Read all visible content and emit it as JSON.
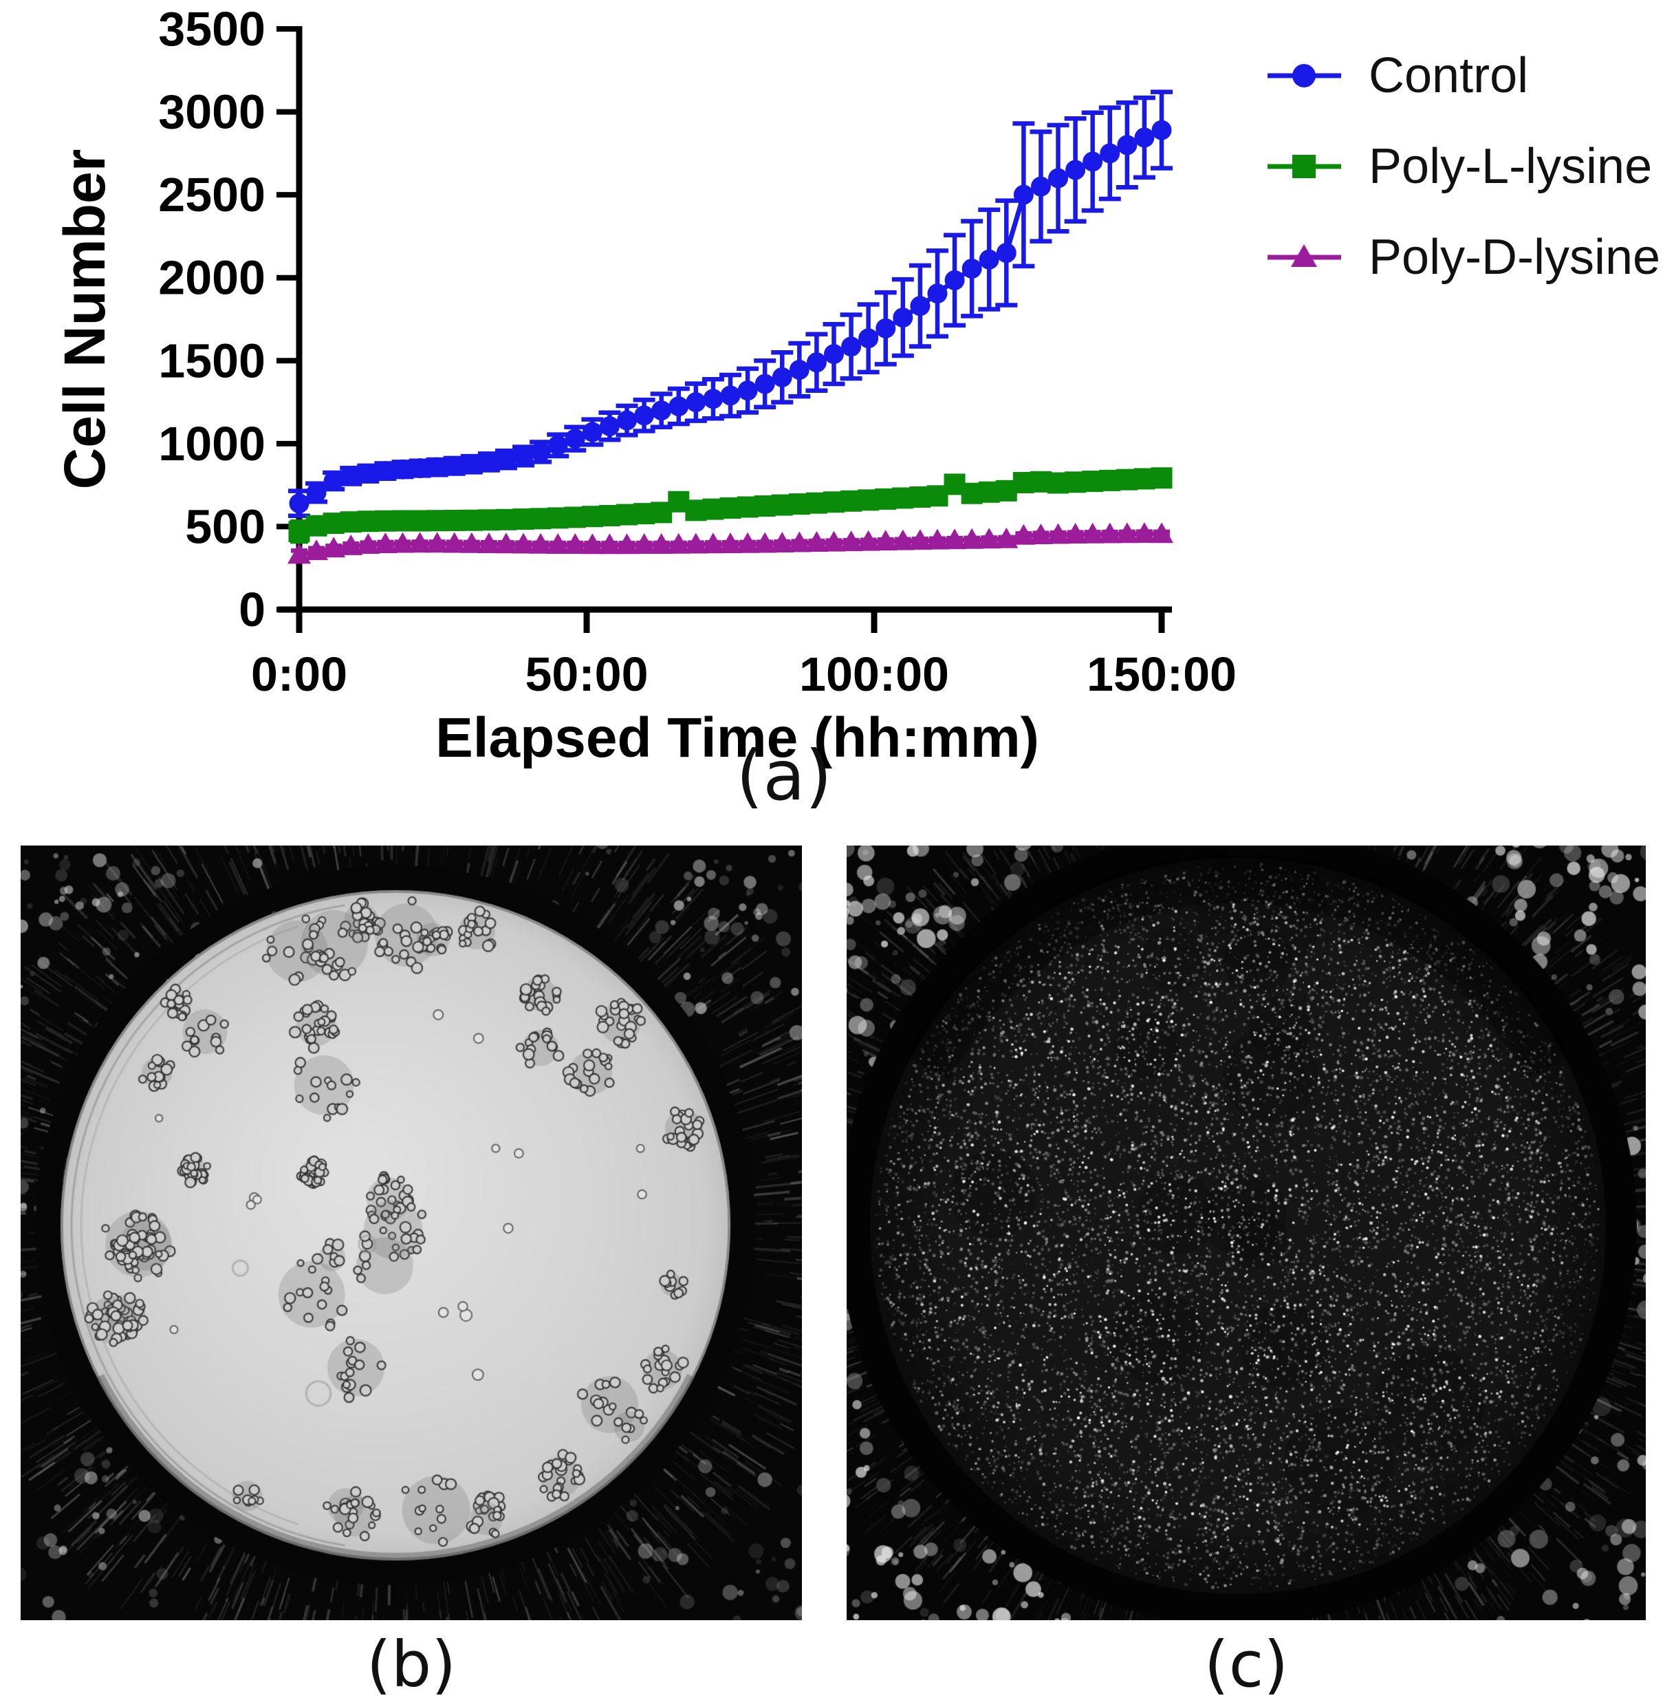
{
  "page": {
    "background": "#ffffff"
  },
  "captions": {
    "a": "(a)",
    "b": "(b)",
    "c": "(c)"
  },
  "chart_data": {
    "type": "line",
    "title": "",
    "xlabel": "Elapsed Time (hh:mm)",
    "ylabel": "Cell Number",
    "xlim_hours": [
      0,
      150
    ],
    "ylim": [
      0,
      3500
    ],
    "y_ticks": [
      0,
      500,
      1000,
      1500,
      2000,
      2500,
      3000,
      3500
    ],
    "x_ticks": [
      {
        "hours": 0,
        "label": "0:00"
      },
      {
        "hours": 50,
        "label": "50:00"
      },
      {
        "hours": 100,
        "label": "100:00"
      },
      {
        "hours": 150,
        "label": "150:00"
      }
    ],
    "grid": false,
    "legend_position": "top-right",
    "sample_interval_hours": 3,
    "x_hours": [
      0,
      3,
      6,
      9,
      12,
      15,
      18,
      21,
      24,
      27,
      30,
      33,
      36,
      39,
      42,
      45,
      48,
      51,
      54,
      57,
      60,
      63,
      66,
      69,
      72,
      75,
      78,
      81,
      84,
      87,
      90,
      93,
      96,
      99,
      102,
      105,
      108,
      111,
      114,
      117,
      120,
      123,
      126,
      129,
      132,
      135,
      138,
      141,
      144,
      147,
      150
    ],
    "series": [
      {
        "name": "Control",
        "color": "#1a1ae8",
        "marker": "circle",
        "values": [
          640,
          705,
          775,
          805,
          820,
          835,
          845,
          852,
          858,
          866,
          876,
          890,
          905,
          925,
          950,
          990,
          1030,
          1070,
          1105,
          1140,
          1170,
          1200,
          1225,
          1250,
          1270,
          1290,
          1320,
          1360,
          1400,
          1445,
          1490,
          1540,
          1585,
          1635,
          1695,
          1760,
          1830,
          1905,
          1985,
          2055,
          2110,
          2150,
          2500,
          2550,
          2600,
          2650,
          2700,
          2750,
          2800,
          2845,
          2890
        ],
        "errors": [
          75,
          55,
          50,
          48,
          47,
          46,
          45,
          45,
          46,
          47,
          48,
          50,
          52,
          55,
          60,
          65,
          70,
          76,
          82,
          88,
          94,
          100,
          106,
          112,
          118,
          124,
          132,
          140,
          150,
          160,
          170,
          180,
          192,
          204,
          216,
          230,
          244,
          258,
          272,
          286,
          300,
          315,
          430,
          330,
          320,
          310,
          295,
          275,
          255,
          240,
          230
        ]
      },
      {
        "name": "Poly-L-lysine",
        "color": "#0a8c0a",
        "marker": "square",
        "values": [
          470,
          505,
          520,
          528,
          532,
          534,
          535,
          535,
          536,
          537,
          538,
          540,
          542,
          545,
          548,
          552,
          556,
          561,
          566,
          572,
          578,
          585,
          650,
          598,
          605,
          612,
          618,
          624,
          630,
          636,
          642,
          648,
          654,
          660,
          666,
          672,
          678,
          685,
          755,
          700,
          708,
          716,
          765,
          770,
          763,
          768,
          773,
          778,
          783,
          788,
          793
        ],
        "errors": [
          60,
          45,
          40,
          38,
          36,
          34,
          33,
          32,
          31,
          30,
          30,
          29,
          29,
          28,
          28,
          27,
          27,
          26,
          26,
          26,
          25,
          25,
          45,
          25,
          25,
          25,
          25,
          25,
          25,
          25,
          25,
          25,
          25,
          25,
          26,
          26,
          26,
          27,
          48,
          27,
          27,
          28,
          30,
          30,
          30,
          30,
          31,
          31,
          32,
          32,
          33
        ]
      },
      {
        "name": "Poly-D-lysine",
        "color": "#9c1d9c",
        "marker": "triangle",
        "values": [
          330,
          352,
          368,
          382,
          390,
          394,
          396,
          397,
          397,
          396,
          395,
          394,
          393,
          392,
          391,
          390,
          390,
          389,
          389,
          389,
          390,
          390,
          391,
          392,
          393,
          394,
          395,
          396,
          398,
          400,
          402,
          404,
          406,
          408,
          410,
          412,
          414,
          416,
          418,
          420,
          422,
          424,
          445,
          448,
          450,
          452,
          453,
          454,
          455,
          456,
          455
        ],
        "errors": [
          25,
          18,
          16,
          15,
          14,
          13,
          12,
          12,
          12,
          12,
          12,
          12,
          12,
          12,
          12,
          12,
          12,
          12,
          12,
          12,
          12,
          12,
          12,
          12,
          12,
          12,
          12,
          12,
          12,
          12,
          12,
          12,
          12,
          12,
          12,
          12,
          12,
          12,
          12,
          12,
          12,
          12,
          14,
          14,
          14,
          14,
          14,
          14,
          14,
          14,
          14
        ]
      }
    ]
  },
  "micrographs": {
    "panel_b": {
      "description": "brightfield circular well, sparse dark cell clusters mostly near rim",
      "background_color": "#070707",
      "well_color": "#d6d6d6",
      "cell_color": "#cdcdcd",
      "cell_outline_color": "#2d2d2d",
      "cluster_count": 40,
      "single_cell_count": 16,
      "bubble_count": 3,
      "seed": 11
    },
    "panel_c": {
      "description": "dark circular well densely covered with bright cell speckles, white smudges at corners",
      "background_color": "#060606",
      "well_color": "#151515",
      "speckle_count": 9000,
      "bright_speckle_count": 1500,
      "dark_patch_count": 14,
      "seed": 77
    }
  }
}
